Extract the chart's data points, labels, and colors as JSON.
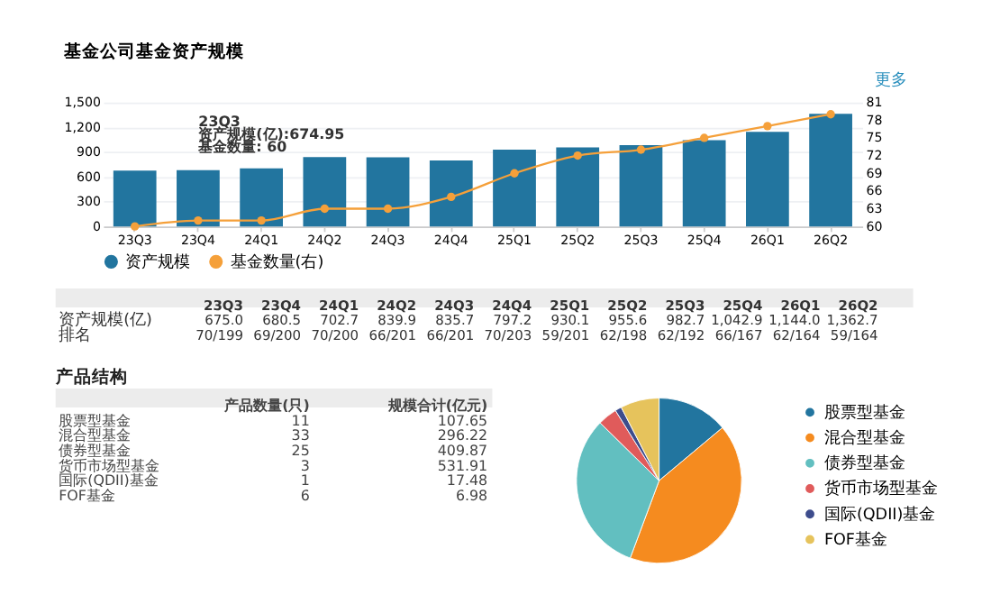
{
  "chart_data": [
    {
      "type": "bar",
      "title": "基金公司基金资产规模",
      "categories": [
        "23Q3",
        "23Q4",
        "24Q1",
        "24Q2",
        "24Q3",
        "24Q4",
        "25Q1",
        "25Q2",
        "25Q3",
        "25Q4",
        "26Q1",
        "26Q2"
      ],
      "series": [
        {
          "name": "资产规模",
          "type": "bar",
          "color": "#22759f",
          "values": [
            675.0,
            680.5,
            702.7,
            839.9,
            835.7,
            797.2,
            930.1,
            955.6,
            982.7,
            1042.9,
            1144.0,
            1362.7
          ]
        },
        {
          "name": "基金数量(右)",
          "type": "line",
          "axis": "y2",
          "color": "#f5a03a",
          "marker": "circle",
          "values": [
            60,
            61,
            61,
            63,
            63,
            65,
            69,
            72,
            73,
            75,
            77,
            79
          ]
        }
      ],
      "ylim": [
        0,
        1500
      ],
      "yticks": [
        0,
        300,
        600,
        900,
        {
          "value": 1200,
          "label": "1,200"
        },
        {
          "value": 1500,
          "label": "1,500"
        }
      ],
      "y2lim": [
        60,
        81
      ],
      "y2ticks": [
        60,
        63,
        66,
        69,
        72,
        75,
        78,
        81
      ],
      "grid": "y",
      "legend": "bottom",
      "annotations": [
        "更多",
        "23Q3",
        "资产规模(亿):674.95",
        "基金数量: 60",
        "资产规模(亿)",
        "排名",
        "675.0",
        "680.5",
        "702.7",
        "839.9",
        "835.7",
        "797.2",
        "930.1",
        "955.6",
        "982.7",
        "1,042.9",
        "1,144.0",
        "1,362.7",
        "70/199",
        "69/200",
        "70/200",
        "66/201",
        "66/201",
        "70/203",
        "59/201",
        "62/198",
        "62/192",
        "66/167",
        "62/164",
        "59/164"
      ]
    },
    {
      "type": "pie",
      "categories": [
        "股票型基金",
        "混合型基金",
        "债券型基金",
        "货币市场型基金",
        "国际(QDII)基金",
        "FOF基金"
      ],
      "values": [
        13.92,
        41.77,
        31.65,
        3.8,
        1.27,
        7.59
      ],
      "colors": [
        "#22759f",
        "#f58b1f",
        "#62bfc0",
        "#e05b5b",
        "#3d4c8c",
        "#e6c35c"
      ],
      "legend": "right",
      "annotations": [
        "产品结构",
        "产品数量(只)",
        "规模合计(亿元)",
        "11",
        "33",
        "25",
        "3",
        "1",
        "6",
        "107.65",
        "296.22",
        "409.87",
        "531.91",
        "17.48",
        "6.98"
      ]
    }
  ]
}
